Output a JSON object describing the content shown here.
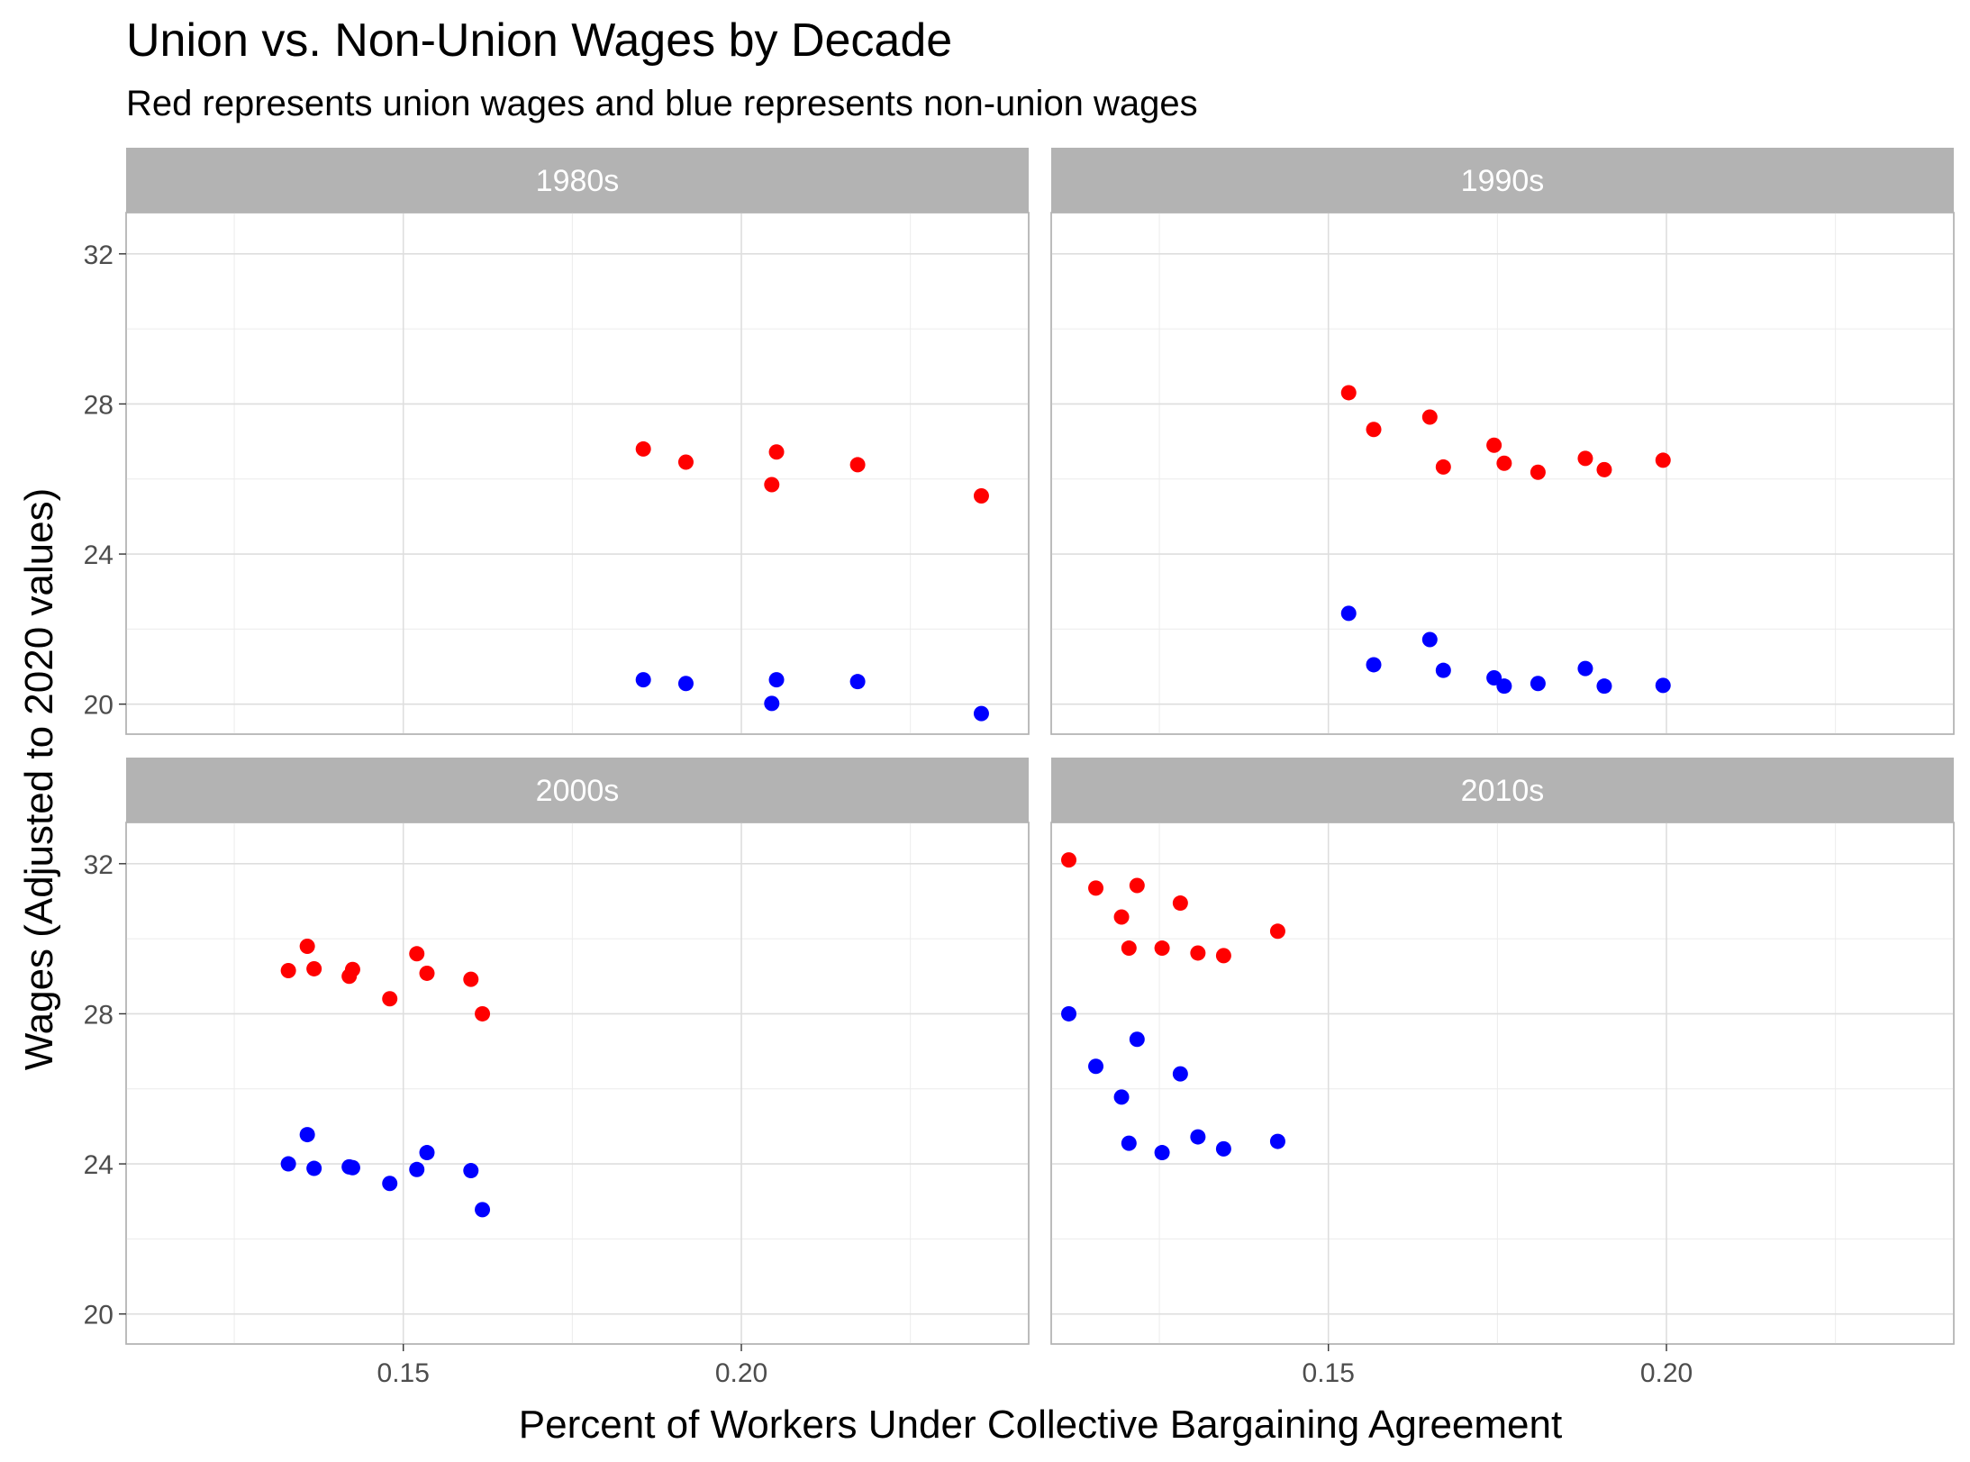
{
  "chart_data": {
    "type": "scatter",
    "title": "Union vs. Non-Union Wages by Decade",
    "subtitle": "Red represents union wages and blue represents non-union wages",
    "xlabel": "Percent of Workers Under Collective Bargaining Agreement",
    "ylabel": "Wages (Adjusted to 2020 values)",
    "xlim": [
      0.109,
      0.2425
    ],
    "ylim": [
      19.2,
      33.1
    ],
    "x_ticks": [
      0.15,
      0.2
    ],
    "x_tick_labels": [
      "0.15",
      "0.20"
    ],
    "x_minor": [
      0.125,
      0.175,
      0.225
    ],
    "y_ticks": [
      20,
      24,
      28,
      32
    ],
    "y_tick_labels": [
      "20",
      "24",
      "28",
      "32"
    ],
    "y_minor": [
      22,
      26,
      30
    ],
    "grid": true,
    "colors": {
      "union": "#ff0000",
      "nonunion": "#0000ff",
      "strip": "#b3b3b3"
    },
    "series_meaning": [
      "union",
      "nonunion"
    ],
    "panels": [
      {
        "label": "1980s",
        "points": [
          {
            "x": 0.1855,
            "union": 26.8,
            "nonunion": 20.65
          },
          {
            "x": 0.1918,
            "union": 26.45,
            "nonunion": 20.55
          },
          {
            "x": 0.2045,
            "union": 25.85,
            "nonunion": 20.02
          },
          {
            "x": 0.2052,
            "union": 26.72,
            "nonunion": 20.65
          },
          {
            "x": 0.2172,
            "union": 26.38,
            "nonunion": 20.6
          },
          {
            "x": 0.2355,
            "union": 25.55,
            "nonunion": 19.75
          }
        ]
      },
      {
        "label": "1990s",
        "points": [
          {
            "x": 0.153,
            "union": 28.3,
            "nonunion": 22.42
          },
          {
            "x": 0.1567,
            "union": 27.32,
            "nonunion": 21.05
          },
          {
            "x": 0.165,
            "union": 27.65,
            "nonunion": 21.72
          },
          {
            "x": 0.167,
            "union": 26.32,
            "nonunion": 20.9
          },
          {
            "x": 0.1745,
            "union": 26.9,
            "nonunion": 20.7
          },
          {
            "x": 0.176,
            "union": 26.42,
            "nonunion": 20.48
          },
          {
            "x": 0.181,
            "union": 26.18,
            "nonunion": 20.55
          },
          {
            "x": 0.188,
            "union": 26.55,
            "nonunion": 20.95
          },
          {
            "x": 0.1908,
            "union": 26.25,
            "nonunion": 20.48
          },
          {
            "x": 0.1995,
            "union": 26.5,
            "nonunion": 20.5
          }
        ]
      },
      {
        "label": "2000s",
        "points": [
          {
            "x": 0.133,
            "union": 29.15,
            "nonunion": 24.0
          },
          {
            "x": 0.1358,
            "union": 29.8,
            "nonunion": 24.78
          },
          {
            "x": 0.1368,
            "union": 29.2,
            "nonunion": 23.88
          },
          {
            "x": 0.142,
            "union": 29.0,
            "nonunion": 23.92
          },
          {
            "x": 0.1425,
            "union": 29.18,
            "nonunion": 23.9
          },
          {
            "x": 0.148,
            "union": 28.4,
            "nonunion": 23.48
          },
          {
            "x": 0.152,
            "union": 29.6,
            "nonunion": 23.85
          },
          {
            "x": 0.1535,
            "union": 29.08,
            "nonunion": 24.3
          },
          {
            "x": 0.16,
            "union": 28.92,
            "nonunion": 23.82
          },
          {
            "x": 0.1617,
            "union": 28.0,
            "nonunion": 22.78
          }
        ]
      },
      {
        "label": "2010s",
        "points": [
          {
            "x": 0.1116,
            "union": 32.1,
            "nonunion": 28.0
          },
          {
            "x": 0.1156,
            "union": 31.35,
            "nonunion": 26.6
          },
          {
            "x": 0.1194,
            "union": 30.58,
            "nonunion": 25.78
          },
          {
            "x": 0.1205,
            "union": 29.75,
            "nonunion": 24.55
          },
          {
            "x": 0.1217,
            "union": 31.42,
            "nonunion": 27.32
          },
          {
            "x": 0.1281,
            "union": 30.95,
            "nonunion": 26.4
          },
          {
            "x": 0.1254,
            "union": 29.75,
            "nonunion": 24.3
          },
          {
            "x": 0.1307,
            "union": 29.62,
            "nonunion": 24.72
          },
          {
            "x": 0.1345,
            "union": 29.55,
            "nonunion": 24.4
          },
          {
            "x": 0.1425,
            "union": 30.2,
            "nonunion": 24.6
          }
        ]
      }
    ]
  }
}
